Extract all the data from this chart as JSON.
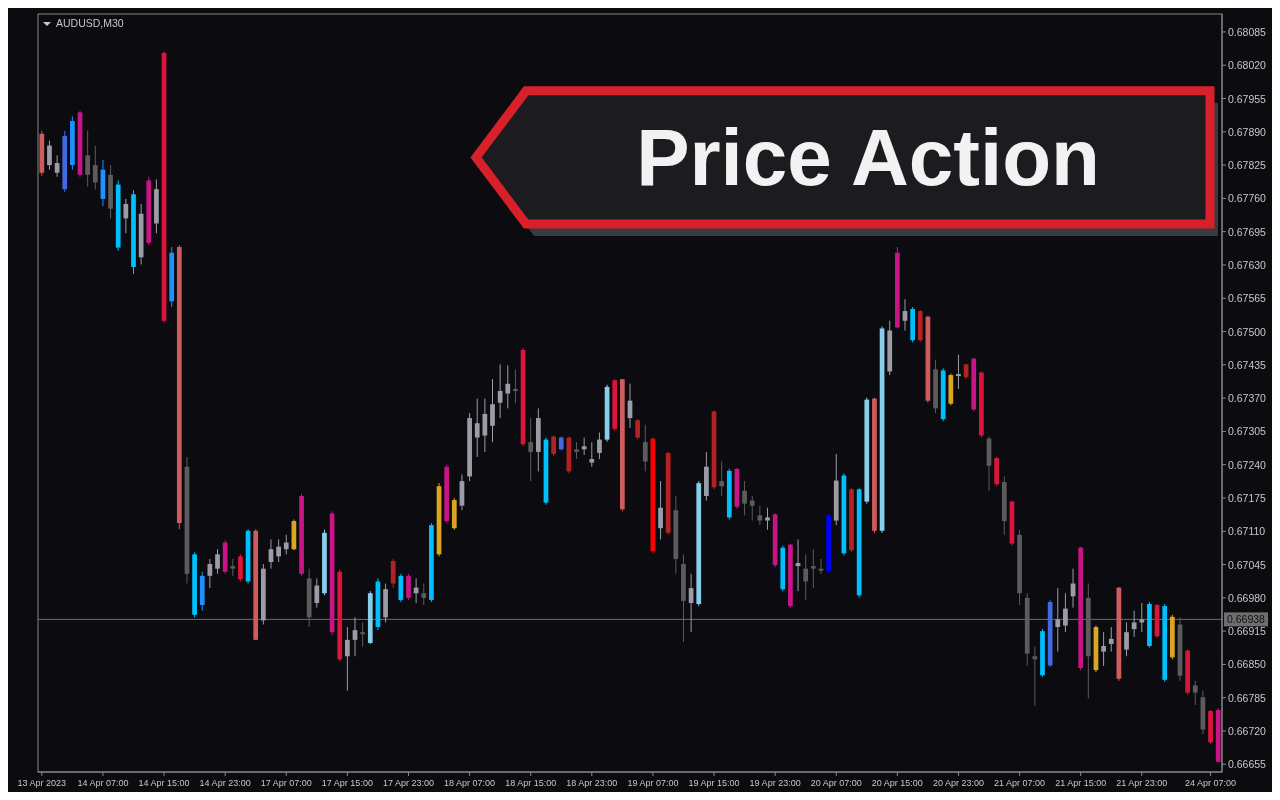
{
  "chart_data": {
    "type": "candlestick",
    "title": "AUDUSD,M30",
    "annotations": [
      "Price Action"
    ],
    "categories": [
      "13 Apr 2023",
      null,
      null,
      null,
      null,
      null,
      null,
      null,
      "14 Apr 07:00",
      null,
      null,
      null,
      null,
      null,
      null,
      null,
      "14 Apr 15:00",
      null,
      null,
      null,
      null,
      null,
      null,
      null,
      "14 Apr 23:00",
      null,
      null,
      null,
      null,
      null,
      null,
      null,
      "17 Apr 07:00",
      null,
      null,
      null,
      null,
      null,
      null,
      null,
      "17 Apr 15:00",
      null,
      null,
      null,
      null,
      null,
      null,
      null,
      "17 Apr 23:00",
      null,
      null,
      null,
      null,
      null,
      null,
      null,
      "18 Apr 07:00",
      null,
      null,
      null,
      null,
      null,
      null,
      null,
      "18 Apr 15:00",
      null,
      null,
      null,
      null,
      null,
      null,
      null,
      "18 Apr 23:00",
      null,
      null,
      null,
      null,
      null,
      null,
      null,
      "19 Apr 07:00",
      null,
      null,
      null,
      null,
      null,
      null,
      null,
      "19 Apr 15:00",
      null,
      null,
      null,
      null,
      null,
      null,
      null,
      "19 Apr 23:00",
      null,
      null,
      null,
      null,
      null,
      null,
      null,
      "20 Apr 07:00",
      null,
      null,
      null,
      null,
      null,
      null,
      null,
      "20 Apr 15:00",
      null,
      null,
      null,
      null,
      null,
      null,
      null,
      "20 Apr 23:00",
      null,
      null,
      null,
      null,
      null,
      null,
      null,
      "21 Apr 07:00",
      null,
      null,
      null,
      null,
      null,
      null,
      null,
      "21 Apr 15:00",
      null,
      null,
      null,
      null,
      null,
      null,
      null,
      "21 Apr 23:00",
      null,
      null,
      null,
      null,
      null,
      null,
      null,
      null,
      "24 Apr 07:00",
      null
    ],
    "ohlc": [
      [
        0.67886,
        0.67892,
        0.67804,
        0.6781
      ],
      [
        0.67825,
        0.67873,
        0.67816,
        0.67863
      ],
      [
        0.6781,
        0.67844,
        0.67802,
        0.67829
      ],
      [
        0.67778,
        0.67892,
        0.67772,
        0.67882
      ],
      [
        0.67825,
        0.6792,
        0.67816,
        0.67911
      ],
      [
        0.67928,
        0.67931,
        0.67802,
        0.67806
      ],
      [
        0.67844,
        0.67892,
        0.67783,
        0.67806
      ],
      [
        0.67825,
        0.67863,
        0.67777,
        0.67791
      ],
      [
        0.67816,
        0.67835,
        0.67745,
        0.67759
      ],
      [
        0.67806,
        0.67825,
        0.67721,
        0.6774
      ],
      [
        0.67787,
        0.67795,
        0.67658,
        0.67664
      ],
      [
        0.67721,
        0.67759,
        0.67692,
        0.67749
      ],
      [
        0.67768,
        0.67776,
        0.67612,
        0.67626
      ],
      [
        0.67645,
        0.67749,
        0.67631,
        0.6773
      ],
      [
        0.67795,
        0.67802,
        0.67669,
        0.67673
      ],
      [
        0.67711,
        0.67797,
        0.67692,
        0.67778
      ],
      [
        0.68044,
        0.68047,
        0.67517,
        0.67521
      ],
      [
        0.67654,
        0.67665,
        0.67548,
        0.67559
      ],
      [
        0.67665,
        0.67669,
        0.67114,
        0.67126
      ],
      [
        0.67236,
        0.67255,
        0.67008,
        0.67027
      ],
      [
        0.67065,
        0.67069,
        0.66942,
        0.66947
      ],
      [
        0.66966,
        0.67031,
        0.66955,
        0.67023
      ],
      [
        0.67023,
        0.67056,
        0.66999,
        0.67046
      ],
      [
        0.67037,
        0.67075,
        0.67027,
        0.67065
      ],
      [
        0.67088,
        0.67092,
        0.67027,
        0.67031
      ],
      [
        0.67037,
        0.67056,
        0.67023,
        0.67042
      ],
      [
        0.67061,
        0.67065,
        0.67012,
        0.67016
      ],
      [
        0.67012,
        0.67114,
        0.67008,
        0.67111
      ],
      [
        0.67111,
        0.67114,
        0.66898,
        0.66898
      ],
      [
        0.66936,
        0.67046,
        0.66928,
        0.67037
      ],
      [
        0.6705,
        0.67094,
        0.67037,
        0.67075
      ],
      [
        0.67061,
        0.67094,
        0.6705,
        0.6708
      ],
      [
        0.67075,
        0.67103,
        0.67065,
        0.67088
      ],
      [
        0.67075,
        0.67133,
        0.67073,
        0.6713
      ],
      [
        0.67179,
        0.67183,
        0.67023,
        0.67027
      ],
      [
        0.67018,
        0.67037,
        0.66923,
        0.66942
      ],
      [
        0.6697,
        0.67018,
        0.66961,
        0.67004
      ],
      [
        0.66989,
        0.67113,
        0.66985,
        0.67107
      ],
      [
        0.67145,
        0.67149,
        0.66907,
        0.66913
      ],
      [
        0.67031,
        0.67035,
        0.66856,
        0.6686
      ],
      [
        0.66866,
        0.66923,
        0.66799,
        0.66898
      ],
      [
        0.66898,
        0.66942,
        0.66866,
        0.66917
      ],
      [
        0.66909,
        0.66932,
        0.66885,
        0.66913
      ],
      [
        0.66892,
        0.66993,
        0.6689,
        0.66989
      ],
      [
        0.66923,
        0.67018,
        0.66917,
        0.67012
      ],
      [
        0.66942,
        0.67008,
        0.66932,
        0.66997
      ],
      [
        0.67008,
        0.67056,
        0.66999,
        0.67052
      ],
      [
        0.66976,
        0.67027,
        0.66972,
        0.67023
      ],
      [
        0.67023,
        0.67027,
        0.66976,
        0.6698
      ],
      [
        0.66989,
        0.67018,
        0.6697,
        0.67
      ],
      [
        0.66989,
        0.67008,
        0.66966,
        0.6698
      ],
      [
        0.66976,
        0.67126,
        0.66972,
        0.67122
      ],
      [
        0.67065,
        0.67204,
        0.67061,
        0.67198
      ],
      [
        0.67236,
        0.6724,
        0.67126,
        0.6713
      ],
      [
        0.67171,
        0.67175,
        0.67113,
        0.67116
      ],
      [
        0.6716,
        0.67221,
        0.67151,
        0.67208
      ],
      [
        0.67217,
        0.67341,
        0.67208,
        0.67331
      ],
      [
        0.67293,
        0.67369,
        0.67255,
        0.67321
      ],
      [
        0.67297,
        0.67369,
        0.67265,
        0.67339
      ],
      [
        0.67316,
        0.67407,
        0.67284,
        0.67358
      ],
      [
        0.67361,
        0.67436,
        0.67331,
        0.67384
      ],
      [
        0.67379,
        0.67434,
        0.6735,
        0.67398
      ],
      [
        0.67388,
        0.67426,
        0.6736,
        0.67384
      ],
      [
        0.67464,
        0.67468,
        0.67276,
        0.6728
      ],
      [
        0.67284,
        0.67331,
        0.67208,
        0.67265
      ],
      [
        0.67265,
        0.6735,
        0.67227,
        0.67331
      ],
      [
        0.67289,
        0.67293,
        0.67162,
        0.67166
      ],
      [
        0.67295,
        0.67297,
        0.67257,
        0.67261
      ],
      [
        0.6727,
        0.67295,
        0.67268,
        0.67293
      ],
      [
        0.67293,
        0.67295,
        0.67223,
        0.67227
      ],
      [
        0.67265,
        0.67284,
        0.67251,
        0.6727
      ],
      [
        0.6727,
        0.67293,
        0.67259,
        0.67276
      ],
      [
        0.67244,
        0.67284,
        0.67236,
        0.67251
      ],
      [
        0.67263,
        0.67303,
        0.67251,
        0.67289
      ],
      [
        0.67289,
        0.67396,
        0.67285,
        0.67392
      ],
      [
        0.67405,
        0.67407,
        0.67306,
        0.6731
      ],
      [
        0.67407,
        0.67407,
        0.67149,
        0.67153
      ],
      [
        0.67331,
        0.67398,
        0.67312,
        0.67365
      ],
      [
        0.67327,
        0.67329,
        0.67289,
        0.67293
      ],
      [
        0.67284,
        0.67318,
        0.67227,
        0.67246
      ],
      [
        0.67291,
        0.67293,
        0.67067,
        0.67071
      ],
      [
        0.67116,
        0.67208,
        0.67094,
        0.67156
      ],
      [
        0.67263,
        0.67265,
        0.67103,
        0.67107
      ],
      [
        0.67151,
        0.67179,
        0.67027,
        0.67056
      ],
      [
        0.67046,
        0.67065,
        0.66894,
        0.66974
      ],
      [
        0.6697,
        0.67027,
        0.66913,
        0.66999
      ],
      [
        0.66968,
        0.67208,
        0.66964,
        0.67204
      ],
      [
        0.67179,
        0.67265,
        0.6717,
        0.67236
      ],
      [
        0.67344,
        0.67346,
        0.67192,
        0.67196
      ],
      [
        0.67208,
        0.67246,
        0.67179,
        0.67198
      ],
      [
        0.67137,
        0.67232,
        0.67133,
        0.67228
      ],
      [
        0.67232,
        0.67234,
        0.67154,
        0.67158
      ],
      [
        0.67189,
        0.67208,
        0.67141,
        0.67164
      ],
      [
        0.6717,
        0.67179,
        0.67131,
        0.6716
      ],
      [
        0.67141,
        0.6716,
        0.67122,
        0.67131
      ],
      [
        0.67131,
        0.67156,
        0.67113,
        0.67137
      ],
      [
        0.67143,
        0.67145,
        0.6704,
        0.67044
      ],
      [
        0.66997,
        0.67082,
        0.66993,
        0.67078
      ],
      [
        0.67084,
        0.67086,
        0.66961,
        0.66964
      ],
      [
        0.67042,
        0.67094,
        0.66993,
        0.67048
      ],
      [
        0.67037,
        0.67065,
        0.66976,
        0.67012
      ],
      [
        0.67037,
        0.67075,
        0.66999,
        0.67042
      ],
      [
        0.67037,
        0.67056,
        0.67027,
        0.67033
      ],
      [
        0.67033,
        0.67143,
        0.67029,
        0.67141
      ],
      [
        0.67131,
        0.67261,
        0.67122,
        0.67209
      ],
      [
        0.67219,
        0.67223,
        0.67063,
        0.67067
      ],
      [
        0.67192,
        0.67194,
        0.67069,
        0.67073
      ],
      [
        0.67192,
        0.67194,
        0.66981,
        0.66985
      ],
      [
        0.67168,
        0.67371,
        0.67164,
        0.67367
      ],
      [
        0.67369,
        0.67371,
        0.67107,
        0.67111
      ],
      [
        0.67111,
        0.6751,
        0.67107,
        0.67506
      ],
      [
        0.67422,
        0.67521,
        0.67415,
        0.67502
      ],
      [
        0.67654,
        0.67665,
        0.67506,
        0.67508
      ],
      [
        0.67521,
        0.67563,
        0.67502,
        0.6754
      ],
      [
        0.67483,
        0.67548,
        0.67479,
        0.67544
      ],
      [
        0.6754,
        0.67542,
        0.67479,
        0.67483
      ],
      [
        0.67529,
        0.67531,
        0.67361,
        0.67365
      ],
      [
        0.67426,
        0.67445,
        0.67341,
        0.6735
      ],
      [
        0.67329,
        0.67428,
        0.67325,
        0.67424
      ],
      [
        0.67359,
        0.67418,
        0.67356,
        0.67415
      ],
      [
        0.67413,
        0.67455,
        0.67388,
        0.67417
      ],
      [
        0.67436,
        0.67437,
        0.67407,
        0.67411
      ],
      [
        0.67447,
        0.67449,
        0.67344,
        0.67348
      ],
      [
        0.6742,
        0.67422,
        0.67293,
        0.67297
      ],
      [
        0.67291,
        0.67295,
        0.67189,
        0.67238
      ],
      [
        0.67253,
        0.67255,
        0.67198,
        0.67202
      ],
      [
        0.67206,
        0.67217,
        0.67103,
        0.6713
      ],
      [
        0.67168,
        0.6717,
        0.67082,
        0.67086
      ],
      [
        0.67103,
        0.67113,
        0.66966,
        0.66989
      ],
      [
        0.6698,
        0.66989,
        0.66847,
        0.66871
      ],
      [
        0.66866,
        0.66885,
        0.66769,
        0.6686
      ],
      [
        0.66829,
        0.66919,
        0.66826,
        0.66915
      ],
      [
        0.66848,
        0.66976,
        0.66845,
        0.66972
      ],
      [
        0.66923,
        0.66999,
        0.66875,
        0.66938
      ],
      [
        0.66926,
        0.66989,
        0.66913,
        0.66959
      ],
      [
        0.66983,
        0.67037,
        0.66961,
        0.67008
      ],
      [
        0.67078,
        0.6708,
        0.66839,
        0.66843
      ],
      [
        0.6698,
        0.67008,
        0.66784,
        0.66866
      ],
      [
        0.66839,
        0.66926,
        0.66835,
        0.66923
      ],
      [
        0.66875,
        0.66913,
        0.66847,
        0.66886
      ],
      [
        0.6689,
        0.66923,
        0.66875,
        0.669
      ],
      [
        0.67,
        0.67001,
        0.66818,
        0.66822
      ],
      [
        0.66879,
        0.66932,
        0.66866,
        0.66913
      ],
      [
        0.66919,
        0.66955,
        0.66904,
        0.66932
      ],
      [
        0.66932,
        0.6697,
        0.66913,
        0.66938
      ],
      [
        0.66886,
        0.66972,
        0.66883,
        0.66968
      ],
      [
        0.66966,
        0.66968,
        0.66902,
        0.66905
      ],
      [
        0.6682,
        0.66968,
        0.66816,
        0.66964
      ],
      [
        0.66864,
        0.66947,
        0.6686,
        0.66943
      ],
      [
        0.66928,
        0.66942,
        0.66818,
        0.66828
      ],
      [
        0.66877,
        0.66879,
        0.66791,
        0.66795
      ],
      [
        0.66809,
        0.66818,
        0.66771,
        0.66795
      ],
      [
        0.66786,
        0.66799,
        0.66714,
        0.66723
      ],
      [
        0.66759,
        0.66761,
        0.66695,
        0.66698
      ],
      [
        0.66761,
        0.66765,
        0.66658,
        0.6666
      ]
    ],
    "colors": [
      "#cd5c5c",
      "#9c9ca8",
      "#9c9ca8",
      "#4169e1",
      "#1e90ff",
      "#c71585",
      "#5c5c5c",
      "#5c5c5c",
      "#1e90ff",
      "#5c5c5c",
      "#00bfff",
      "#9c9ca8",
      "#00bfff",
      "#9c9ca8",
      "#c71585",
      "#9c9ca8",
      "#dc143c",
      "#1e90ff",
      "#cd5c5c",
      "#5c5c5c",
      "#00bfff",
      "#1e90ff",
      "#9c9ca8",
      "#9c9ca8",
      "#c71585",
      "#5c5c5c",
      "#dc143c",
      "#00bfff",
      "#cd5c5c",
      "#9c9ca8",
      "#9c9ca8",
      "#9c9ca8",
      "#9c9ca8",
      "#daa520",
      "#c71585",
      "#5c5c5c",
      "#9c9ca8",
      "#87ceeb",
      "#c71585",
      "#dc143c",
      "#9c9ca8",
      "#9c9ca8",
      "#5c5c5c",
      "#87ceeb",
      "#00bfff",
      "#9c9ca8",
      "#b22222",
      "#00bfff",
      "#c71585",
      "#9c9ca8",
      "#5c5c5c",
      "#00bfff",
      "#daa520",
      "#c71585",
      "#daa520",
      "#9c9ca8",
      "#9c9ca8",
      "#9c9ca8",
      "#9c9ca8",
      "#9c9ca8",
      "#9c9ca8",
      "#9c9ca8",
      "#5c5c5c",
      "#dc143c",
      "#5c5c5c",
      "#9c9ca8",
      "#00bfff",
      "#b22222",
      "#4169e1",
      "#b22222",
      "#5c5c5c",
      "#9c9ca8",
      "#9c9ca8",
      "#9c9ca8",
      "#87ceeb",
      "#dc143c",
      "#cd5c5c",
      "#9c9ca8",
      "#b22222",
      "#5c5c5c",
      "#ff0000",
      "#9c9ca8",
      "#b22222",
      "#5c5c5c",
      "#5c5c5c",
      "#9c9ca8",
      "#87ceeb",
      "#9c9ca8",
      "#b22222",
      "#5c5c5c",
      "#00bfff",
      "#c71585",
      "#5c5c5c",
      "#5c5c5c",
      "#5c5c5c",
      "#9c9ca8",
      "#c71585",
      "#00bfff",
      "#c71585",
      "#9c9ca8",
      "#5c5c5c",
      "#5c5c5c",
      "#5c5c5c",
      "#0000ff",
      "#9c9ca8",
      "#00bfff",
      "#b22222",
      "#00bfff",
      "#87ceeb",
      "#cd5c5c",
      "#87ceeb",
      "#9c9ca8",
      "#c71585",
      "#9c9ca8",
      "#00bfff",
      "#b22222",
      "#cd5c5c",
      "#5c5c5c",
      "#00bfff",
      "#daa520",
      "#9c9ca8",
      "#b22222",
      "#c71585",
      "#dc143c",
      "#5c5c5c",
      "#dc143c",
      "#5c5c5c",
      "#dc143c",
      "#5c5c5c",
      "#5c5c5c",
      "#5c5c5c",
      "#00bfff",
      "#4169e1",
      "#9c9ca8",
      "#9c9ca8",
      "#9c9ca8",
      "#c71585",
      "#5c5c5c",
      "#daa520",
      "#9c9ca8",
      "#9c9ca8",
      "#cd5c5c",
      "#9c9ca8",
      "#9c9ca8",
      "#9c9ca8",
      "#00bfff",
      "#dc143c",
      "#00bfff",
      "#daa520",
      "#5c5c5c",
      "#dc143c",
      "#5c5c5c",
      "#5c5c5c",
      "#dc143c",
      "#c71585"
    ],
    "ylim": [
      0.6664,
      0.6812
    ],
    "yticks": [
      0.68085,
      {
        "value": 0.6802,
        "label": "0.68020"
      },
      0.67955,
      {
        "value": 0.6789,
        "label": "0.67890"
      },
      0.67825,
      {
        "value": 0.6776,
        "label": "0.67760"
      },
      0.67695,
      {
        "value": 0.6763,
        "label": "0.67630"
      },
      0.67565,
      {
        "value": 0.675,
        "label": "0.67500"
      },
      0.67435,
      {
        "value": 0.6737,
        "label": "0.67370"
      },
      0.67305,
      {
        "value": 0.6724,
        "label": "0.67240"
      },
      0.67175,
      {
        "value": 0.6711,
        "label": "0.67110"
      },
      0.67045,
      {
        "value": 0.6698,
        "label": "0.66980"
      },
      0.66915,
      {
        "value": 0.6685,
        "label": "0.66850"
      },
      0.66785,
      {
        "value": 0.6672,
        "label": "0.66720"
      },
      0.66655
    ],
    "ref_lines": [
      {
        "axis": "y",
        "value": 0.66938,
        "label": "0.66938",
        "color": "#6e6e6e"
      }
    ],
    "grid": false
  }
}
